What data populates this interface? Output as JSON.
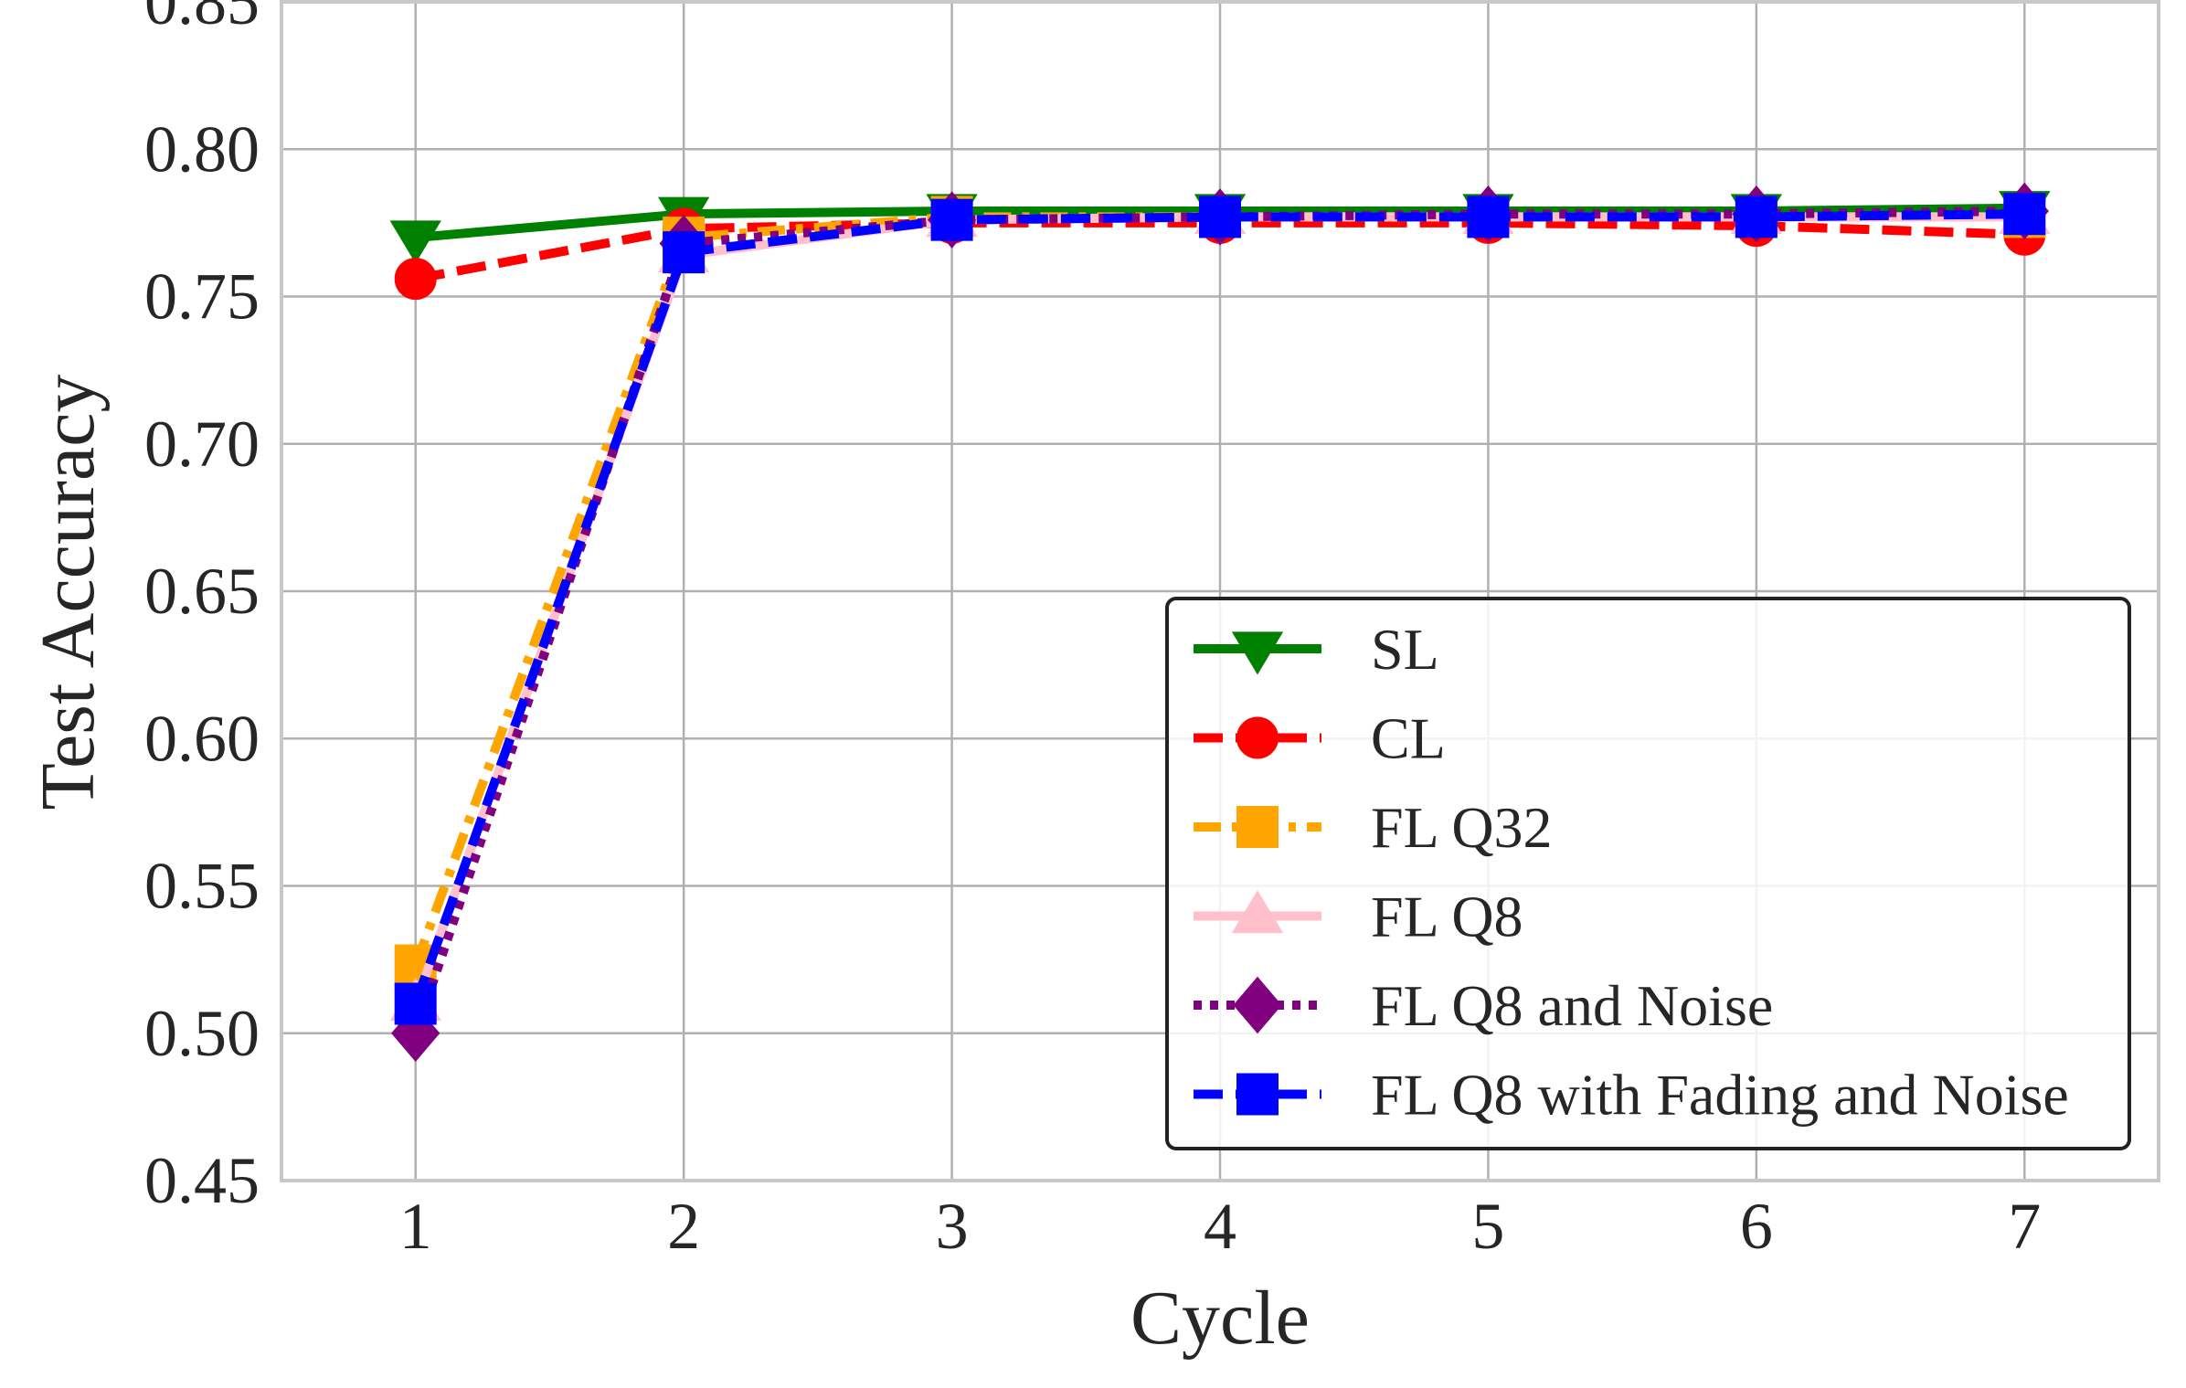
{
  "chart_data": {
    "type": "line",
    "title": "",
    "xlabel": "Cycle",
    "ylabel": "Test Accuracy",
    "x": [
      1,
      2,
      3,
      4,
      5,
      6,
      7
    ],
    "xlim": [
      0.5,
      7.5
    ],
    "ylim": [
      0.45,
      0.85
    ],
    "xticks": [
      "1",
      "2",
      "3",
      "4",
      "5",
      "6",
      "7"
    ],
    "yticks": [
      "0.45",
      "0.50",
      "0.55",
      "0.60",
      "0.65",
      "0.70",
      "0.75",
      "0.80",
      "0.85"
    ],
    "grid": true,
    "legend_position": "lower-right",
    "series": [
      {
        "name": "SL",
        "color": "#008000",
        "marker": "triangle-down",
        "dash": "solid",
        "values": [
          0.77,
          0.778,
          0.779,
          0.779,
          0.779,
          0.779,
          0.78
        ]
      },
      {
        "name": "CL",
        "color": "#ff0000",
        "marker": "circle",
        "dash": "dashed",
        "values": [
          0.756,
          0.773,
          0.775,
          0.775,
          0.775,
          0.774,
          0.771
        ]
      },
      {
        "name": "FL Q32",
        "color": "#ffa500",
        "marker": "square",
        "dash": "dashdot",
        "values": [
          0.523,
          0.77,
          0.777,
          0.777,
          0.777,
          0.777,
          0.777
        ]
      },
      {
        "name": "FL Q8",
        "color": "#ffc0cb",
        "marker": "triangle-up",
        "dash": "solid",
        "values": [
          0.51,
          0.764,
          0.776,
          0.777,
          0.777,
          0.777,
          0.777
        ]
      },
      {
        "name": "FL Q8 and Noise",
        "color": "#800080",
        "marker": "diamond",
        "dash": "dotted",
        "values": [
          0.5,
          0.768,
          0.776,
          0.777,
          0.778,
          0.778,
          0.779
        ]
      },
      {
        "name": "FL Q8 with Fading and Noise",
        "color": "#0000ff",
        "marker": "square",
        "dash": "dashed",
        "values": [
          0.51,
          0.765,
          0.776,
          0.777,
          0.777,
          0.777,
          0.778
        ]
      }
    ]
  }
}
